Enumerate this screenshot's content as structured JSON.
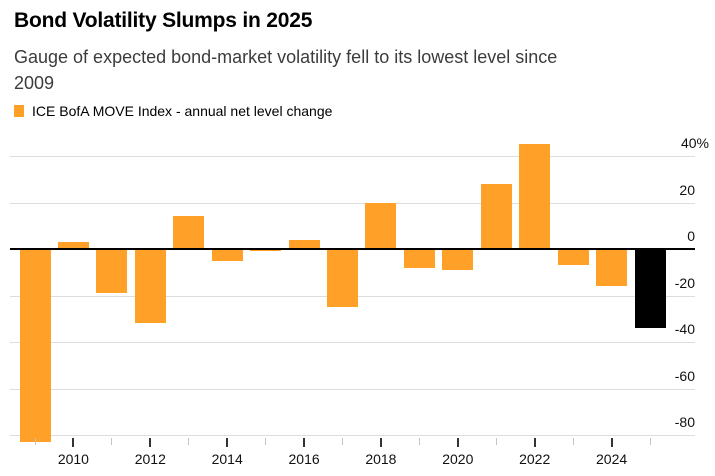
{
  "header": {
    "title": "Bond Volatility Slumps in 2025",
    "subtitle": "Gauge of expected bond-market volatility fell to its lowest level since 2009",
    "subtitle_lines": [
      "Gauge of expected bond-market volatility fell to its lowest level since",
      "2009"
    ]
  },
  "legend": {
    "label": "ICE BofA MOVE Index - annual net level change",
    "swatch_color": "#FFA128"
  },
  "chart_data": {
    "type": "bar",
    "title": "Bond Volatility Slumps in 2025",
    "series_name": "ICE BofA MOVE Index - annual net level change",
    "categories": [
      2009,
      2010,
      2011,
      2012,
      2013,
      2014,
      2015,
      2016,
      2017,
      2018,
      2019,
      2020,
      2021,
      2022,
      2023,
      2024,
      2025
    ],
    "values": [
      -83,
      3,
      -19,
      -32,
      14,
      -5,
      -1,
      4,
      -25,
      20,
      -8,
      -9,
      28,
      45,
      -7,
      -16,
      -34
    ],
    "unit": "%",
    "bar_color": "#FFA128",
    "highlight_category": 2025,
    "highlight_color": "#000000",
    "ylim": [
      -90,
      46
    ],
    "yticks": [
      {
        "label": "40%",
        "value": 40
      },
      {
        "label": "20",
        "value": 20
      },
      {
        "label": "0",
        "value": 0
      },
      {
        "label": "-20",
        "value": -20
      },
      {
        "label": "-40",
        "value": -40
      },
      {
        "label": "-60",
        "value": -60
      },
      {
        "label": "-80",
        "value": -80
      }
    ],
    "x_major_tick_years": [
      2010,
      2012,
      2014,
      2016,
      2018,
      2020,
      2022,
      2024
    ],
    "grid": true,
    "zero_line": true,
    "legend_position": "top-left"
  },
  "colors": {
    "accent_orange": "#FFA128",
    "highlight_black": "#000000",
    "gridline": "#DDDDDD",
    "zero_line": "#000000",
    "tick_major": "#333333",
    "tick_minor": "#C4C4C4",
    "text_primary": "#000000",
    "text_secondary": "#3C3C3C"
  }
}
